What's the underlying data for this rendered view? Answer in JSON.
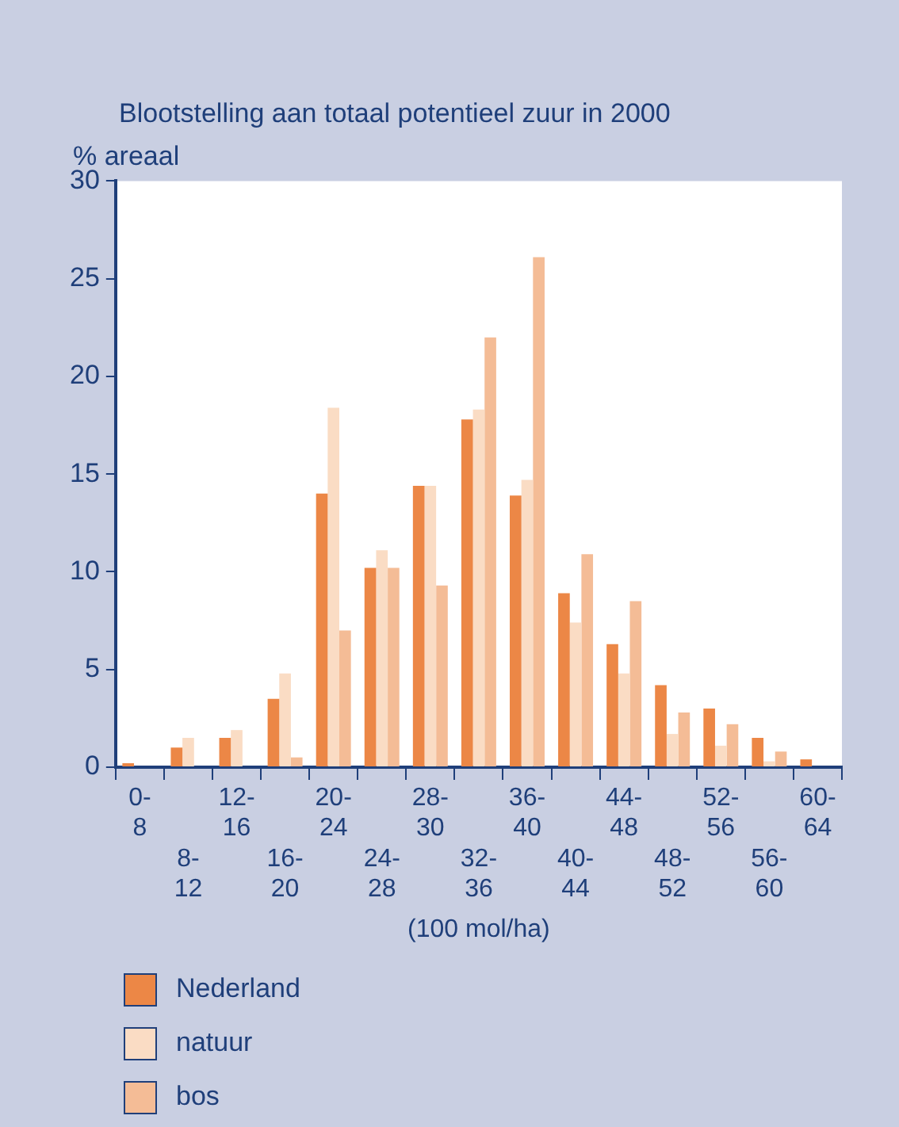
{
  "chart_data": {
    "type": "bar",
    "title": "Blootstelling aan totaal potentieel zuur in 2000",
    "ylabel": "% areaal",
    "xlabel": "(100 mol/ha)",
    "categories": [
      "0-8",
      "8-12",
      "12-16",
      "16-20",
      "20-24",
      "24-28",
      "28-30",
      "32-36",
      "36-40",
      "40-44",
      "44-48",
      "48-52",
      "52-56",
      "56-60",
      "60-64"
    ],
    "series": [
      {
        "name": "Nederland",
        "color": "#ec8746",
        "values": [
          0.2,
          1.0,
          1.5,
          3.5,
          14.0,
          10.2,
          14.4,
          17.8,
          13.9,
          8.9,
          6.3,
          4.2,
          3.0,
          1.5,
          0.4
        ]
      },
      {
        "name": "natuur",
        "color": "#fadcc4",
        "values": [
          null,
          1.5,
          1.9,
          4.8,
          18.4,
          11.1,
          14.4,
          18.3,
          14.7,
          7.4,
          4.8,
          1.7,
          1.1,
          0.3,
          0
        ]
      },
      {
        "name": "bos",
        "color": "#f4bc96",
        "values": [
          0,
          null,
          null,
          0.5,
          7.0,
          10.2,
          9.3,
          22.0,
          26.1,
          10.9,
          8.5,
          2.8,
          2.2,
          0.8,
          null
        ]
      }
    ],
    "ylim": [
      0,
      30
    ],
    "yticks": [
      0,
      5,
      10,
      15,
      20,
      25,
      30
    ],
    "grid": false,
    "legend": "bottom"
  }
}
